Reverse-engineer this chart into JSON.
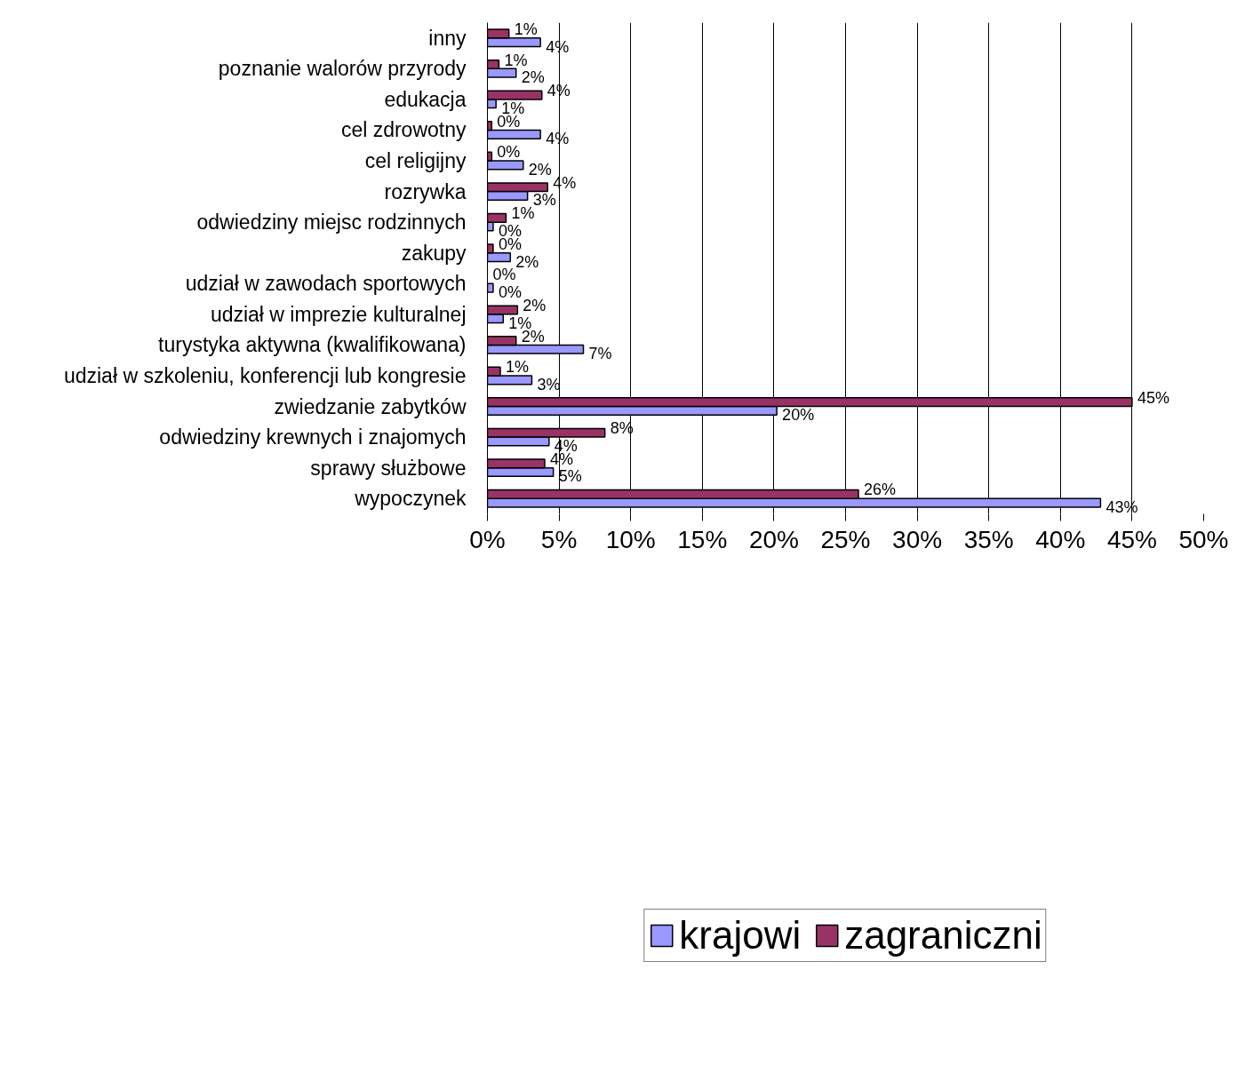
{
  "chart_data": {
    "type": "bar",
    "orientation": "horizontal",
    "categories": [
      "inny",
      "poznanie walorów przyrody",
      "edukacja",
      "cel zdrowotny",
      "cel religijny",
      "rozrywka",
      "odwiedziny miejsc rodzinnych",
      "zakupy",
      "udział w zawodach sportowych",
      "udział w imprezie kulturalnej",
      "turystyka aktywna (kwalifikowana)",
      "udział w szkoleniu, konferencji lub kongresie",
      "zwiedzanie zabytków",
      "odwiedziny krewnych i znajomych",
      "sprawy służbowe",
      "wypoczynek"
    ],
    "series": [
      {
        "name": "krajowi",
        "color": "#9999ff",
        "values": [
          3.7,
          2.0,
          0.6,
          3.7,
          2.5,
          2.8,
          0.4,
          1.6,
          0.4,
          1.1,
          6.7,
          3.1,
          20.2,
          4.3,
          4.6,
          42.8
        ],
        "value_labels": [
          "4%",
          "2%",
          "1%",
          "4%",
          "2%",
          "3%",
          "0%",
          "2%",
          "0%",
          "1%",
          "7%",
          "3%",
          "20%",
          "4%",
          "5%",
          "43%"
        ]
      },
      {
        "name": "zagraniczni",
        "color": "#993366",
        "values": [
          1.5,
          0.8,
          3.8,
          0.3,
          0.3,
          4.2,
          1.3,
          0.4,
          0.0,
          2.1,
          2.0,
          0.9,
          45.0,
          8.2,
          4.0,
          25.9
        ],
        "value_labels": [
          "1%",
          "1%",
          "4%",
          "0%",
          "0%",
          "4%",
          "1%",
          "0%",
          "0%",
          "2%",
          "2%",
          "1%",
          "45%",
          "8%",
          "4%",
          "26%"
        ]
      }
    ],
    "xlim": [
      0,
      50
    ],
    "xticks": [
      {
        "value": 0,
        "label": "0%"
      },
      {
        "value": 5,
        "label": "5%"
      },
      {
        "value": 10,
        "label": "10%"
      },
      {
        "value": 15,
        "label": "15%"
      },
      {
        "value": 20,
        "label": "20%"
      },
      {
        "value": 25,
        "label": "25%"
      },
      {
        "value": 30,
        "label": "30%"
      },
      {
        "value": 35,
        "label": "35%"
      },
      {
        "value": 40,
        "label": "40%"
      },
      {
        "value": 45,
        "label": "45%"
      },
      {
        "value": 50,
        "label": "50%"
      }
    ],
    "grid": "x",
    "legend": "bottom"
  }
}
